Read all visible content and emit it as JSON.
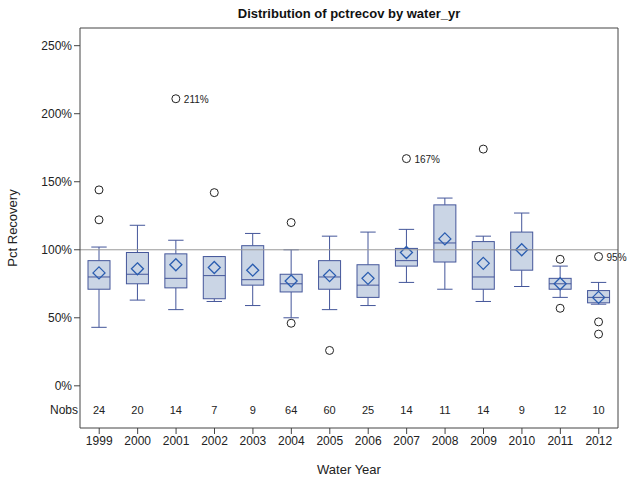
{
  "chart_data": {
    "type": "box",
    "title": "Distribution of pctrecov by water_yr",
    "x_label": "Water Year",
    "y_label": "Pct Recovery",
    "categories": [
      "1999",
      "2000",
      "2001",
      "2002",
      "2003",
      "2004",
      "2005",
      "2006",
      "2007",
      "2008",
      "2009",
      "2010",
      "2011",
      "2012"
    ],
    "whisker_low": [
      43,
      63,
      56,
      62,
      59,
      50,
      56,
      59,
      76,
      71,
      62,
      73,
      65,
      60
    ],
    "q1": [
      71,
      75,
      72,
      64,
      74,
      69,
      71,
      65,
      88,
      91,
      71,
      85,
      71,
      61
    ],
    "median": [
      80,
      82,
      79,
      81,
      78,
      75,
      80,
      74,
      92,
      105,
      80,
      100,
      75,
      65
    ],
    "q3": [
      92,
      98,
      97,
      95,
      103,
      82,
      92,
      89,
      101,
      133,
      106,
      113,
      79,
      70
    ],
    "whisker_high": [
      102,
      118,
      107,
      95,
      112,
      100,
      110,
      113,
      115,
      138,
      110,
      127,
      88,
      76
    ],
    "mean": [
      83,
      86,
      89,
      87,
      85,
      77,
      81,
      79,
      98,
      108,
      90,
      100,
      75,
      65
    ],
    "outliers": [
      [
        122,
        144
      ],
      [],
      [
        211
      ],
      [
        142
      ],
      [],
      [
        120,
        46
      ],
      [
        26
      ],
      [],
      [
        167
      ],
      [],
      [
        174
      ],
      [],
      [
        93,
        57
      ],
      [
        95,
        47,
        38
      ]
    ],
    "nobs": [
      24,
      20,
      14,
      7,
      9,
      64,
      60,
      25,
      14,
      11,
      14,
      9,
      12,
      10
    ],
    "nobs_label": "Nobs",
    "annotations": [
      {
        "category": "2001",
        "y": 211,
        "text": "211%"
      },
      {
        "category": "2007",
        "y": 167,
        "text": "167%"
      },
      {
        "category": "2012",
        "y": 95,
        "text": "95%"
      }
    ],
    "reference_line": 100,
    "color": "#cad5e5",
    "ylim": [
      -31,
      263
    ],
    "yticks": [
      {
        "value": 0,
        "label": "0%"
      },
      {
        "value": 50,
        "label": "50%"
      },
      {
        "value": 100,
        "label": "100%"
      },
      {
        "value": 150,
        "label": "150%"
      },
      {
        "value": 200,
        "label": "200%"
      },
      {
        "value": 250,
        "label": "250%"
      }
    ],
    "grid": false
  }
}
